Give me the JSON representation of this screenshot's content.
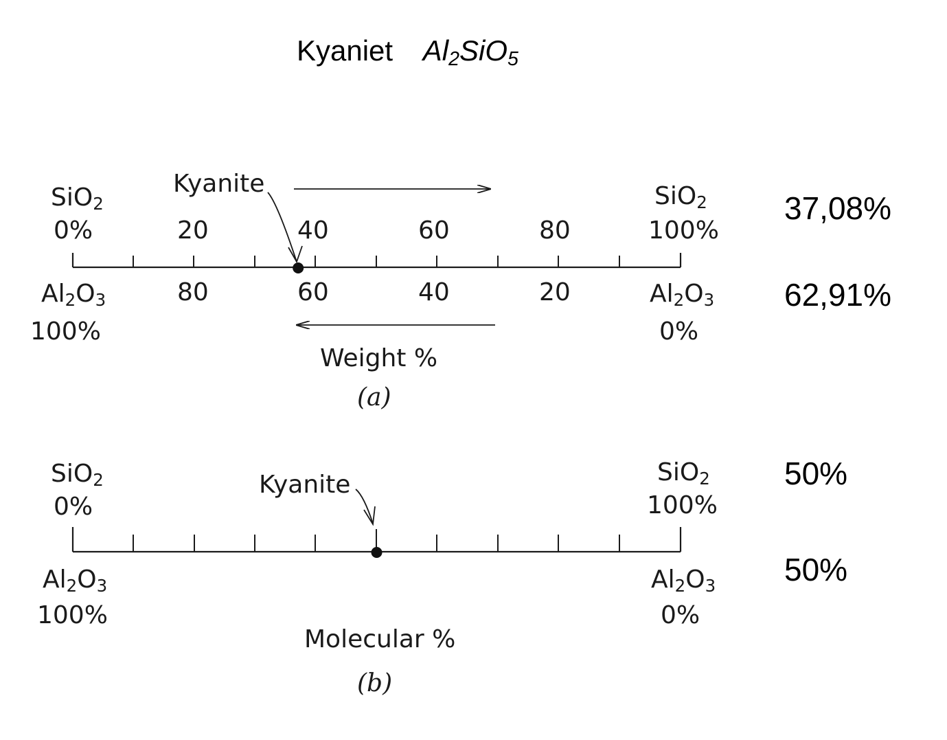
{
  "title": {
    "name": "Kyaniet",
    "formula": {
      "p1": "Al",
      "s1": "2",
      "p2": "SiO",
      "s2": "5"
    }
  },
  "diagram_a": {
    "left_top": {
      "formula": "SiO",
      "sub": "2",
      "percent": "0%"
    },
    "right_top": {
      "formula": "SiO",
      "sub": "2",
      "percent": "100%"
    },
    "left_bottom": {
      "formula": "Al",
      "sub1": "2",
      "formula2": "O",
      "sub2": "3",
      "percent": "100%"
    },
    "right_bottom": {
      "formula": "Al",
      "sub1": "2",
      "formula2": "O",
      "sub2": "3",
      "percent": "0%"
    },
    "top_ticks": [
      "20",
      "40",
      "60",
      "80"
    ],
    "bottom_ticks": [
      "80",
      "60",
      "40",
      "20"
    ],
    "marker_label": "Kyanite",
    "axis_label": "Weight %",
    "caption": "(a)",
    "marker_value": 37.08
  },
  "diagram_b": {
    "left_top": {
      "formula": "SiO",
      "sub": "2",
      "percent": "0%"
    },
    "right_top": {
      "formula": "SiO",
      "sub": "2",
      "percent": "100%"
    },
    "left_bottom": {
      "formula": "Al",
      "sub1": "2",
      "formula2": "O",
      "sub2": "3",
      "percent": "100%"
    },
    "right_bottom": {
      "formula": "Al",
      "sub1": "2",
      "formula2": "O",
      "sub2": "3",
      "percent": "0%"
    },
    "marker_label": "Kyanite",
    "axis_label": "Molecular %",
    "caption": "(b)",
    "marker_value": 50
  },
  "results": {
    "a_sio2": "37,08%",
    "a_al2o3": "62,91%",
    "b_sio2": "50%",
    "b_al2o3": "50%"
  }
}
